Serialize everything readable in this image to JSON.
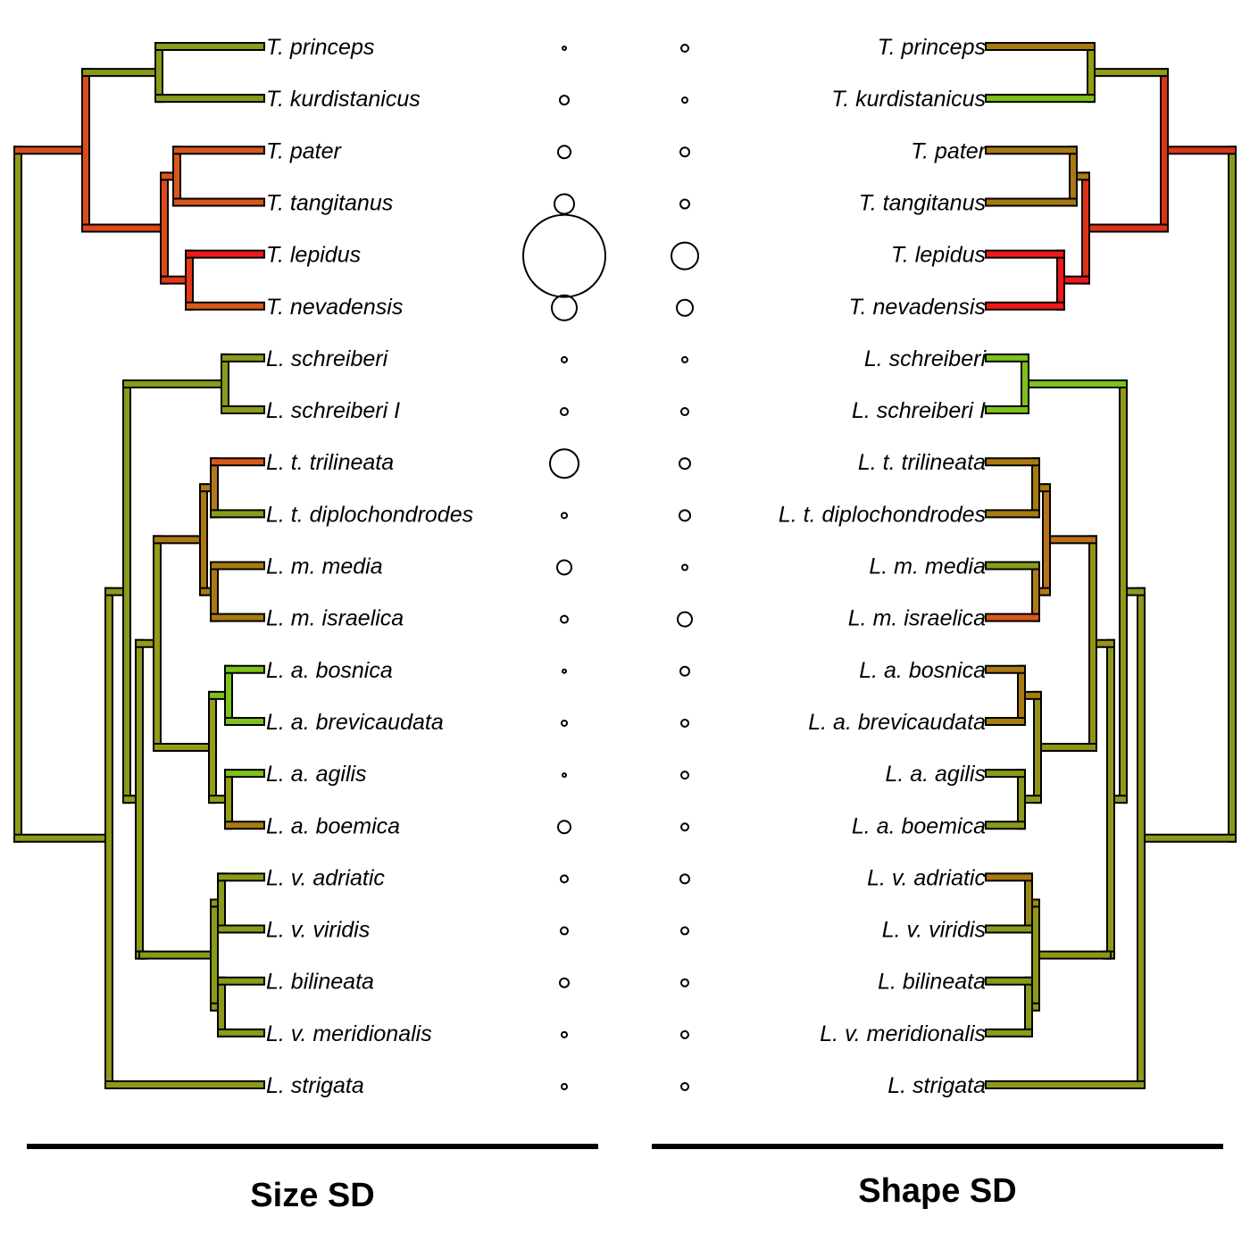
{
  "taxa": [
    "T. princeps",
    "T. kurdistanicus",
    "T. pater",
    "T. tangitanus",
    "T. lepidus",
    "T. nevadensis",
    "L. schreiberi",
    "L. schreiberi I",
    "L. t. trilineata",
    "L. t. diplochondrodes",
    "L. m. media",
    "L. m. israelica",
    "L. a. bosnica",
    "L. a. brevicaudata",
    "L. a. agilis",
    "L. a. boemica",
    "L. v. adriatic",
    "L. v. viridis",
    "L. bilineata",
    "L. v. meridionalis",
    "L. strigata"
  ],
  "panels": {
    "left": {
      "title": "Size SD"
    },
    "right": {
      "title": "Shape SD"
    }
  },
  "size_sd_circle_radius": [
    2,
    5,
    7,
    11,
    46,
    14,
    3,
    4,
    16,
    3,
    8,
    4,
    2,
    3,
    2,
    7,
    4,
    4,
    5,
    3,
    3
  ],
  "shape_sd_circle_radius": [
    4,
    3,
    5,
    5,
    15,
    9,
    3,
    4,
    6,
    6,
    3,
    8,
    5,
    4,
    4,
    4,
    5,
    4,
    4,
    4,
    4
  ],
  "colors": {
    "green": "#7cc21a",
    "olive": "#8c9a1a",
    "ochre": "#a87a10",
    "orange": "#d8581a",
    "red": "#f01818",
    "outline": "#000000"
  },
  "size_sd_tip_colors": [
    "olive",
    "olive",
    "orange",
    "orange",
    "red",
    "orange",
    "olive",
    "olive",
    "orange",
    "olive",
    "ochre",
    "ochre",
    "green",
    "green",
    "green",
    "ochre",
    "olive",
    "olive",
    "olive",
    "olive",
    "olive"
  ],
  "shape_sd_tip_colors": [
    "ochre",
    "green",
    "ochre",
    "ochre",
    "red",
    "red",
    "green",
    "green",
    "ochre",
    "ochre",
    "olive",
    "orange",
    "ochre",
    "ochre",
    "olive",
    "olive",
    "ochre",
    "olive",
    "olive",
    "olive",
    "olive"
  ]
}
